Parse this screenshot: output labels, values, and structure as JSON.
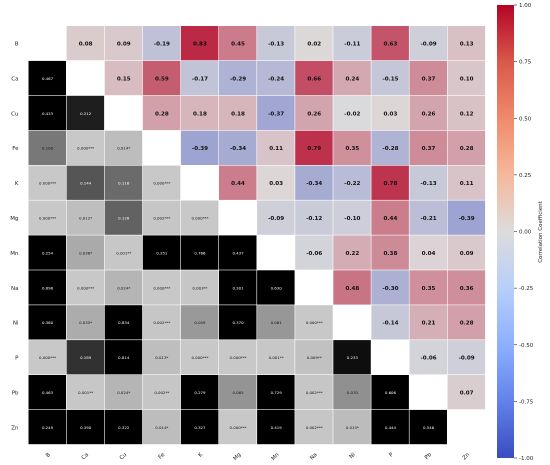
{
  "chart_data": {
    "type": "heatmap",
    "variables": [
      "B",
      "Ca",
      "Cu",
      "Fe",
      "K",
      "Mg",
      "Mn",
      "Na",
      "Ni",
      "P",
      "Pb",
      "Zn"
    ],
    "upper_triangle": "Pearson correlation coefficient",
    "lower_triangle": "p-value",
    "correlations": [
      [
        null,
        0.08,
        0.09,
        -0.19,
        0.83,
        0.45,
        -0.13,
        0.02,
        -0.11,
        0.63,
        -0.09,
        0.13
      ],
      [
        null,
        null,
        0.15,
        0.59,
        -0.17,
        -0.29,
        -0.24,
        0.66,
        0.24,
        -0.15,
        0.37,
        0.1
      ],
      [
        null,
        null,
        null,
        0.28,
        0.18,
        0.18,
        -0.37,
        0.26,
        -0.02,
        0.03,
        0.26,
        0.12
      ],
      [
        null,
        null,
        null,
        null,
        -0.39,
        -0.34,
        0.11,
        0.79,
        0.35,
        -0.28,
        0.37,
        0.28
      ],
      [
        null,
        null,
        null,
        null,
        null,
        0.44,
        0.03,
        -0.34,
        -0.22,
        0.78,
        -0.13,
        0.11
      ],
      [
        null,
        null,
        null,
        null,
        null,
        null,
        -0.09,
        -0.12,
        -0.1,
        0.44,
        -0.21,
        -0.39
      ],
      [
        null,
        null,
        null,
        null,
        null,
        null,
        null,
        -0.06,
        0.22,
        0.38,
        0.04,
        0.09
      ],
      [
        null,
        null,
        null,
        null,
        null,
        null,
        null,
        null,
        0.48,
        -0.3,
        0.35,
        0.36
      ],
      [
        null,
        null,
        null,
        null,
        null,
        null,
        null,
        null,
        null,
        -0.14,
        0.21,
        0.28
      ],
      [
        null,
        null,
        null,
        null,
        null,
        null,
        null,
        null,
        null,
        null,
        -0.06,
        -0.09
      ],
      [
        null,
        null,
        null,
        null,
        null,
        null,
        null,
        null,
        null,
        null,
        null,
        0.07
      ],
      [
        null,
        null,
        null,
        null,
        null,
        null,
        null,
        null,
        null,
        null,
        null,
        null
      ]
    ],
    "p_values": [
      [
        null,
        null,
        null,
        null,
        null,
        null,
        null,
        null,
        null,
        null,
        null,
        null
      ],
      [
        "0.467",
        null,
        null,
        null,
        null,
        null,
        null,
        null,
        null,
        null,
        null,
        null
      ],
      [
        "0.433",
        "0.212",
        null,
        null,
        null,
        null,
        null,
        null,
        null,
        null,
        null,
        null
      ],
      [
        "0.100",
        "0.000***",
        "0.014*",
        null,
        null,
        null,
        null,
        null,
        null,
        null,
        null,
        null
      ],
      [
        "0.000***",
        "0.144",
        "0.116",
        "0.000***",
        null,
        null,
        null,
        null,
        null,
        null,
        null,
        null
      ],
      [
        "0.000***",
        "0.012*",
        "0.128",
        "0.002***",
        "0.000***",
        null,
        null,
        null,
        null,
        null,
        null,
        null
      ],
      [
        "0.254",
        "0.038*",
        "0.001**",
        "0.351",
        "0.766",
        "0.437",
        null,
        null,
        null,
        null,
        null,
        null
      ],
      [
        "0.898",
        "0.000***",
        "0.024*",
        "0.000***",
        "0.003**",
        "0.301",
        "0.630",
        null,
        null,
        null,
        null,
        null
      ],
      [
        "0.360",
        "0.035*",
        "0.834",
        "0.002***",
        "0.059",
        "0.370",
        "0.061",
        "0.000***",
        null,
        null,
        null,
        null
      ],
      [
        "0.000***",
        "0.189",
        "0.814",
        "0.013*",
        "0.000***",
        "0.000***",
        "0.001**",
        "0.009**",
        "0.233",
        null,
        null,
        null
      ],
      [
        "0.463",
        "0.001**",
        "0.024*",
        "0.002**",
        "0.279",
        "0.065",
        "0.729",
        "0.002***",
        "0.070",
        "0.606",
        null,
        null
      ],
      [
        "0.249",
        "0.390",
        "0.322",
        "0.014*",
        "0.327",
        "0.000***",
        "0.419",
        "0.002***",
        "0.015*",
        "0.444",
        "0.546",
        null
      ]
    ],
    "colorbar": {
      "label": "Correlation Coefficient",
      "ticks": [
        "1.00",
        "0.75",
        "0.50",
        "0.25",
        "0.00",
        "-0.25",
        "-0.50",
        "-0.75",
        "-1.00"
      ],
      "range": [
        -1,
        1
      ],
      "colormap": "coolwarm",
      "color_low": "#3a4cc0",
      "color_mid": "#dddcdc",
      "color_high": "#b40426"
    },
    "p_value_shading": "greyscale, black for high p-values, light grey for significant p-values"
  }
}
